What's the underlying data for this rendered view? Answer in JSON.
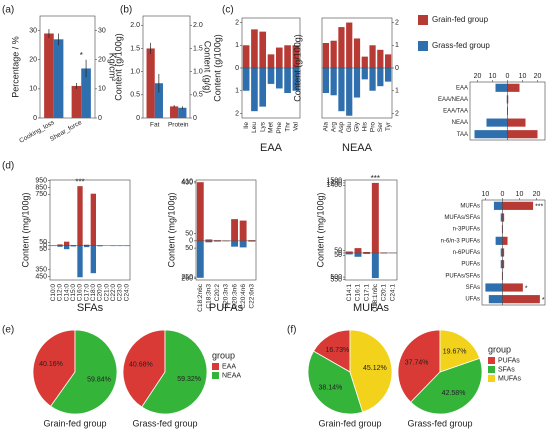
{
  "chart_data": [
    {
      "type": "bar",
      "panel": "(a)",
      "categories": [
        "Cooking_loss",
        "Shear_force"
      ],
      "ylabel": "Percentage / %",
      "y2label": "Kg/cm²",
      "ylim": [
        0,
        35
      ],
      "yticks": [
        0,
        10,
        20,
        30
      ],
      "y2lim": [
        0,
        35
      ],
      "y2ticks": [
        0,
        10,
        20,
        30
      ],
      "series": [
        {
          "color": "#b83a35",
          "values": [
            29,
            11
          ],
          "errors": [
            1.5,
            1
          ]
        },
        {
          "color": "#2f6fad",
          "values": [
            27,
            17
          ],
          "errors": [
            2,
            3
          ]
        }
      ],
      "annotations": [
        {
          "text": "*",
          "category": "Shear_force"
        }
      ]
    },
    {
      "type": "bar",
      "panel": "(b)",
      "categories": [
        "Fat",
        "Protein"
      ],
      "ylabel": "Content (g/100g)",
      "y2label": "Content (g/g)",
      "ylim": [
        0,
        2.2
      ],
      "yticks": [
        0,
        0.5,
        {
          "value": 1,
          "label": "1.0"
        },
        1.5,
        {
          "value": 2,
          "label": "2.0"
        }
      ],
      "y2lim": [
        0,
        2.2
      ],
      "y2ticks": [
        0,
        0.5,
        {
          "value": 1,
          "label": "1.0"
        },
        1.5,
        {
          "value": 2,
          "label": "2.0"
        }
      ],
      "series": [
        {
          "color": "#b83a35",
          "values": [
            1.5,
            0.25
          ],
          "errors": [
            0.12,
            0.03
          ]
        },
        {
          "color": "#2f6fad",
          "values": [
            0.75,
            0.22
          ],
          "errors": [
            0.2,
            0.03
          ]
        }
      ]
    },
    {
      "type": "bar",
      "panel": "(c)",
      "overlay": true,
      "xlabel": "EAA",
      "ylabel": "Content (g/100g)",
      "legend": true,
      "categories": [
        "Ile",
        "Leu",
        "Lys",
        "Met",
        "Phe",
        "Thr",
        "Val"
      ],
      "ylim": [
        -2.2,
        2.2
      ],
      "yticks": [
        2,
        1,
        0,
        {
          "value": -1,
          "label": "1"
        },
        {
          "value": -2,
          "label": "2"
        }
      ],
      "series": [
        {
          "name": "Grain-fed group",
          "color": "#b83a35",
          "values": [
            1.0,
            1.7,
            1.6,
            0.6,
            0.9,
            1.0,
            1.0
          ]
        },
        {
          "name": "Grass-fed group",
          "color": "#2f6fad",
          "values": [
            -1.0,
            -1.9,
            -1.7,
            -0.7,
            -0.9,
            -1.1,
            -1.0
          ]
        }
      ]
    },
    {
      "type": "bar",
      "overlay": true,
      "xlabel": "NEAA",
      "ylabel": "Content (g/100g)",
      "categories": [
        "Ala",
        "Arg",
        "Asp",
        "Glu",
        "Gly",
        "His",
        "Pro",
        "Ser",
        "Tyr"
      ],
      "ylim": [
        -2.2,
        2.2
      ],
      "yticks": [
        2,
        1,
        0,
        {
          "value": -1,
          "label": "1"
        },
        {
          "value": -2,
          "label": "2"
        }
      ],
      "series": [
        {
          "color": "#b83a35",
          "values": [
            1.1,
            1.2,
            1.8,
            2.0,
            1.3,
            0.5,
            1.0,
            0.8,
            0.6
          ]
        },
        {
          "color": "#2f6fad",
          "values": [
            -1.1,
            -1.2,
            -1.9,
            -2.1,
            -1.3,
            -0.5,
            -1.0,
            -0.8,
            -0.6
          ]
        }
      ]
    },
    {
      "type": "bar",
      "orientation": "horizontal",
      "overlay": true,
      "categories": [
        "EAA",
        "EAA/NEAA",
        "EAA/TAA",
        "NEAA",
        "TAA"
      ],
      "xlim": [
        -25,
        25
      ],
      "xticks": [
        {
          "value": -20,
          "label": "20"
        },
        {
          "value": -10,
          "label": "10"
        },
        0,
        10,
        20
      ],
      "series": [
        {
          "color": "#b83a35",
          "values": [
            8,
            0.5,
            0.3,
            12,
            20
          ]
        },
        {
          "color": "#2f6fad",
          "values": [
            -8,
            -0.5,
            -0.3,
            -14,
            -22
          ]
        }
      ]
    },
    {
      "type": "bar",
      "panel": "(d)",
      "overlay": true,
      "xlabel": "SFAs",
      "ylabel": "Content (mg/100g)",
      "categories": [
        "C10:0",
        "C12:0",
        "C14:0",
        "C15:0",
        "C16:0",
        "C17:0",
        "C18:0",
        "C20:0",
        "C21:0",
        "C22:0",
        "C23:0",
        "C24:0"
      ],
      "ylim": [
        -500,
        960
      ],
      "yticks": [
        950,
        850,
        750,
        50,
        0,
        {
          "value": -50,
          "label": "50"
        },
        {
          "value": -350,
          "label": "350"
        },
        {
          "value": -450,
          "label": "450"
        }
      ],
      "series": [
        {
          "color": "#b83a35",
          "values": [
            5,
            20,
            60,
            10,
            870,
            15,
            760,
            8,
            3,
            5,
            5,
            5
          ]
        },
        {
          "color": "#2f6fad",
          "values": [
            -5,
            -15,
            -50,
            -10,
            -460,
            -20,
            -400,
            -8,
            -3,
            -5,
            -5,
            -5
          ]
        }
      ],
      "annotations": [
        {
          "text": "***",
          "category": "C16:0"
        }
      ]
    },
    {
      "type": "bar",
      "overlay": true,
      "xlabel": "PUFAs",
      "ylabel": "Content (mg/100g)",
      "categories": [
        "C18:2n6c",
        "C18:3n3",
        "C20:2",
        "C20:3n3",
        "C20:3n6",
        "C20:4n6",
        "C22:6n3"
      ],
      "ylim": [
        -270,
        420
      ],
      "yticks": [
        410,
        400,
        50,
        0,
        {
          "value": -50,
          "label": "50"
        },
        {
          "value": -250,
          "label": "250"
        },
        {
          "value": -260,
          "label": "260"
        }
      ],
      "series": [
        {
          "color": "#b83a35",
          "values": [
            405,
            10,
            5,
            3,
            150,
            140,
            5
          ]
        },
        {
          "color": "#2f6fad",
          "values": [
            -255,
            -10,
            -5,
            -3,
            -40,
            -45,
            -5
          ]
        }
      ]
    },
    {
      "type": "bar",
      "overlay": true,
      "xlabel": "MUFAs",
      "ylabel": "Content (mg/100g)",
      "categories": [
        "C14:1",
        "C16:1",
        "C17:1",
        "C18:1n9c",
        "C20:1",
        "C24:1"
      ],
      "ylim": [
        -560,
        1510
      ],
      "yticks": [
        1500,
        1450,
        1400,
        50,
        0,
        {
          "value": -50,
          "label": "50"
        },
        {
          "value": -500,
          "label": "500"
        },
        {
          "value": -550,
          "label": "550"
        }
      ],
      "series": [
        {
          "color": "#b83a35",
          "values": [
            30,
            100,
            20,
            1450,
            10,
            5
          ]
        },
        {
          "color": "#2f6fad",
          "values": [
            -30,
            -80,
            -20,
            -520,
            -10,
            -5
          ]
        }
      ],
      "annotations": [
        {
          "text": "***",
          "category": "C18:1n9c"
        }
      ]
    },
    {
      "type": "bar",
      "orientation": "horizontal",
      "overlay": true,
      "categories": [
        "MUFAs",
        "MUFAs/SFAs",
        "n-3PUFAs",
        "n-6/n-3 PUFAs",
        "n-6PUFAs",
        "PUFAs",
        "PUFAs/SFAs",
        "SFAs",
        "UFAs"
      ],
      "xlim": [
        -12,
        25
      ],
      "xticks": [
        {
          "value": -10,
          "label": "10"
        },
        0,
        10,
        20
      ],
      "series": [
        {
          "color": "#b83a35",
          "values": [
            18,
            1,
            0.3,
            3,
            1,
            1,
            0.3,
            12,
            22
          ]
        },
        {
          "color": "#2f6fad",
          "values": [
            -5,
            -1,
            -0.3,
            -4,
            -1,
            -1,
            -0.3,
            -10,
            -8
          ]
        }
      ],
      "annotations": [
        {
          "text": "***",
          "category": "MUFAs"
        },
        {
          "text": "*",
          "category": "SFAs"
        },
        {
          "text": "*",
          "category": "UFAs"
        }
      ]
    },
    {
      "type": "pie",
      "panel": "(e)",
      "title": "Grain-fed group",
      "values": [
        40.16,
        59.84
      ],
      "value_labels": [
        "40.16%",
        "59.84%"
      ],
      "colors": [
        "#d93a35",
        "#35b43a"
      ]
    },
    {
      "type": "pie",
      "title": "Grass-fed group",
      "categories": [
        "EAA",
        "NEAA"
      ],
      "legend_title": "group",
      "values": [
        40.68,
        59.32
      ],
      "value_labels": [
        "40.68%",
        "59.32%"
      ],
      "colors": [
        "#d93a35",
        "#35b43a"
      ]
    },
    {
      "type": "pie",
      "panel": "(f)",
      "title": "Grain-fed group",
      "values": [
        16.73,
        38.14,
        45.12
      ],
      "value_labels": [
        "16.73%",
        "38.14%",
        "45.12%"
      ],
      "colors": [
        "#d93a35",
        "#35b43a",
        "#f2d21b"
      ]
    },
    {
      "type": "pie",
      "title": "Grass-fed group",
      "categories": [
        "PUFAs",
        "SFAs",
        "MUFAs"
      ],
      "legend_title": "group",
      "values": [
        37.74,
        42.58,
        19.67
      ],
      "value_labels": [
        "37.74%",
        "42.58%",
        "19.67%"
      ],
      "colors": [
        "#d93a35",
        "#35b43a",
        "#f2d21b"
      ]
    }
  ]
}
